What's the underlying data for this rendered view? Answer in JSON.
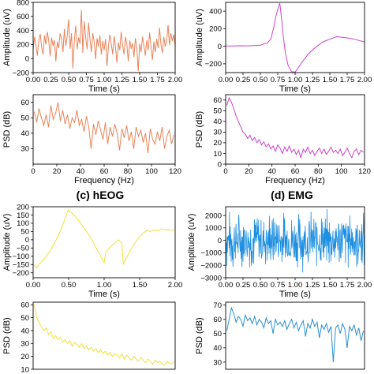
{
  "titles": {
    "top_left_partial": "",
    "top_right_partial": "",
    "c": "(c) hEOG",
    "d": "(d) EMG"
  },
  "chart_data": [
    {
      "id": "a-time",
      "type": "line",
      "color": "#E8845A",
      "xlabel": "Time (s)",
      "ylabel": "Amplitude (uV)",
      "xlim": [
        0,
        2
      ],
      "ylim": [
        -200,
        800
      ],
      "xticks": [
        0,
        0.25,
        0.5,
        0.75,
        1.0,
        1.25,
        1.5,
        1.75,
        2.0
      ],
      "xtick_labels": [
        "0.00",
        "0.25",
        "0.50",
        "0.75",
        "1.00",
        "1.25",
        "1.50",
        "1.75",
        "2.00"
      ],
      "yticks": [
        -200,
        0,
        200,
        400,
        600,
        800
      ],
      "ytick_labels": [
        "−200",
        "0",
        "200",
        "400",
        "600",
        "800"
      ],
      "x": [
        0,
        0.02,
        0.04,
        0.06,
        0.08,
        0.1,
        0.12,
        0.14,
        0.16,
        0.18,
        0.2,
        0.22,
        0.24,
        0.26,
        0.28,
        0.3,
        0.32,
        0.34,
        0.36,
        0.38,
        0.4,
        0.42,
        0.44,
        0.46,
        0.48,
        0.5,
        0.52,
        0.54,
        0.56,
        0.58,
        0.6,
        0.62,
        0.64,
        0.66,
        0.68,
        0.7,
        0.72,
        0.74,
        0.76,
        0.78,
        0.8,
        0.82,
        0.84,
        0.86,
        0.88,
        0.9,
        0.92,
        0.94,
        0.96,
        0.98,
        1.0,
        1.02,
        1.04,
        1.06,
        1.08,
        1.1,
        1.12,
        1.14,
        1.16,
        1.18,
        1.2,
        1.22,
        1.24,
        1.26,
        1.28,
        1.3,
        1.32,
        1.34,
        1.36,
        1.38,
        1.4,
        1.42,
        1.44,
        1.46,
        1.48,
        1.5,
        1.52,
        1.54,
        1.56,
        1.58,
        1.6,
        1.62,
        1.64,
        1.66,
        1.68,
        1.7,
        1.72,
        1.74,
        1.76,
        1.78,
        1.8,
        1.82,
        1.84,
        1.86,
        1.88,
        1.9,
        1.92,
        1.94,
        1.96,
        1.98,
        2.0
      ],
      "y": [
        120,
        310,
        180,
        40,
        260,
        350,
        160,
        60,
        330,
        200,
        380,
        250,
        30,
        300,
        180,
        260,
        -40,
        240,
        150,
        360,
        280,
        90,
        420,
        180,
        320,
        560,
        140,
        360,
        -140,
        250,
        470,
        130,
        300,
        210,
        690,
        80,
        530,
        300,
        130,
        510,
        280,
        90,
        360,
        240,
        -10,
        290,
        170,
        330,
        60,
        250,
        120,
        280,
        -110,
        170,
        340,
        210,
        60,
        320,
        160,
        -60,
        230,
        120,
        380,
        190,
        60,
        310,
        200,
        -40,
        260,
        140,
        220,
        20,
        290,
        150,
        -180,
        210,
        90,
        310,
        180,
        40,
        260,
        120,
        370,
        160,
        -20,
        240,
        90,
        280,
        150,
        440,
        200,
        80,
        310,
        170,
        250,
        480,
        190,
        360,
        250,
        340,
        180
      ]
    },
    {
      "id": "b-time",
      "type": "line",
      "color": "#CC44CC",
      "xlabel": "Time (s)",
      "ylabel": "Amplitude (uV)",
      "xlim": [
        0,
        2
      ],
      "ylim": [
        -300,
        500
      ],
      "xticks": [
        0,
        0.25,
        0.5,
        0.75,
        1.0,
        1.25,
        1.5,
        1.75,
        2.0
      ],
      "xtick_labels": [
        "0.00",
        "0.25",
        "0.50",
        "0.75",
        "1.00",
        "1.25",
        "1.50",
        "1.75",
        "2.00"
      ],
      "yticks": [
        -200,
        0,
        200,
        400
      ],
      "ytick_labels": [
        "−200",
        "0",
        "200",
        "400"
      ],
      "x": [
        0,
        0.1,
        0.2,
        0.3,
        0.4,
        0.5,
        0.55,
        0.6,
        0.65,
        0.7,
        0.72,
        0.75,
        0.78,
        0.8,
        0.83,
        0.86,
        0.9,
        0.95,
        1.0,
        1.05,
        1.1,
        1.2,
        1.3,
        1.4,
        1.5,
        1.6,
        1.7,
        1.8,
        1.9,
        2.0
      ],
      "y": [
        2,
        4,
        6,
        5,
        8,
        12,
        25,
        40,
        80,
        240,
        330,
        420,
        490,
        350,
        120,
        -80,
        -220,
        -290,
        -295,
        -240,
        -180,
        -80,
        -10,
        50,
        80,
        110,
        100,
        90,
        70,
        50
      ]
    },
    {
      "id": "a-psd",
      "type": "line",
      "color": "#E8845A",
      "xlabel": "Frequency (Hz)",
      "ylabel": "PSD (dB)",
      "xlim": [
        0,
        120
      ],
      "ylim": [
        20,
        65
      ],
      "xticks": [
        0,
        20,
        40,
        60,
        80,
        100,
        120
      ],
      "xtick_labels": [
        "0",
        "20",
        "40",
        "60",
        "80",
        "100",
        "120"
      ],
      "yticks": [
        30,
        40,
        50,
        60
      ],
      "ytick_labels": [
        "30",
        "40",
        "50",
        "60"
      ],
      "x": [
        1,
        3,
        5,
        7,
        9,
        11,
        13,
        15,
        17,
        19,
        21,
        23,
        25,
        27,
        29,
        31,
        33,
        35,
        37,
        39,
        41,
        43,
        45,
        47,
        49,
        51,
        53,
        55,
        57,
        59,
        61,
        63,
        65,
        67,
        69,
        71,
        73,
        75,
        77,
        79,
        81,
        83,
        85,
        87,
        89,
        91,
        93,
        95,
        97,
        99,
        101,
        103,
        105,
        107,
        109,
        111,
        113,
        115,
        117,
        119
      ],
      "y": [
        54,
        47,
        56,
        50,
        45,
        52,
        44,
        58,
        49,
        53,
        60,
        48,
        55,
        46,
        52,
        43,
        50,
        47,
        55,
        45,
        49,
        41,
        51,
        44,
        30,
        46,
        39,
        48,
        42,
        36,
        47,
        33,
        44,
        38,
        46,
        40,
        29,
        43,
        37,
        45,
        35,
        41,
        30,
        44,
        38,
        42,
        34,
        40,
        27,
        43,
        36,
        33,
        41,
        35,
        44,
        30,
        38,
        42,
        33,
        39
      ]
    },
    {
      "id": "b-psd",
      "type": "line",
      "color": "#CC44CC",
      "xlabel": "Frequency (Hz)",
      "ylabel": "PSD (dB)",
      "xlim": [
        0,
        120
      ],
      "ylim": [
        0,
        65
      ],
      "xticks": [
        0,
        20,
        40,
        60,
        80,
        100,
        120
      ],
      "xtick_labels": [
        "0",
        "20",
        "40",
        "60",
        "80",
        "100",
        "120"
      ],
      "yticks": [
        0,
        10,
        20,
        30,
        40,
        50,
        60
      ],
      "ytick_labels": [
        "0",
        "10",
        "20",
        "30",
        "40",
        "50",
        "60"
      ],
      "x": [
        1,
        3,
        5,
        7,
        9,
        11,
        13,
        15,
        17,
        19,
        21,
        23,
        25,
        27,
        29,
        31,
        33,
        35,
        37,
        39,
        41,
        43,
        45,
        47,
        49,
        51,
        53,
        55,
        57,
        59,
        61,
        63,
        65,
        67,
        69,
        71,
        73,
        75,
        77,
        79,
        81,
        83,
        85,
        87,
        89,
        91,
        93,
        95,
        97,
        99,
        101,
        103,
        105,
        107,
        109,
        111,
        113,
        115,
        117,
        119
      ],
      "y": [
        55,
        62,
        58,
        52,
        45,
        40,
        35,
        30,
        28,
        24,
        27,
        22,
        25,
        20,
        23,
        18,
        21,
        16,
        19,
        14,
        17,
        12,
        18,
        15,
        10,
        16,
        12,
        17,
        11,
        14,
        9,
        13,
        6,
        14,
        11,
        16,
        10,
        13,
        8,
        12,
        15,
        10,
        14,
        9,
        12,
        16,
        11,
        13,
        10,
        14,
        8,
        11,
        15,
        10,
        6,
        12,
        14,
        9,
        13,
        11
      ]
    },
    {
      "id": "c-time",
      "type": "line",
      "color": "#F2E03C",
      "title": "(c) hEOG",
      "xlabel": "Time (s)",
      "ylabel": "Amplitude (uV)",
      "xlim": [
        0,
        2
      ],
      "ylim": [
        -230,
        200
      ],
      "xticks": [
        0,
        0.5,
        1.0,
        1.5,
        2.0
      ],
      "xtick_labels": [
        "0.00",
        "0.50",
        "1.00",
        "1.50",
        "2.00"
      ],
      "yticks": [
        -200,
        -150,
        -100,
        -50,
        0,
        50,
        100,
        150,
        200
      ],
      "ytick_labels": [
        "−200",
        "−150",
        "−100",
        "−50",
        "0",
        "50",
        "100",
        "150",
        "200"
      ],
      "x": [
        0,
        0.05,
        0.1,
        0.15,
        0.2,
        0.25,
        0.3,
        0.35,
        0.4,
        0.45,
        0.48,
        0.5,
        0.55,
        0.6,
        0.65,
        0.7,
        0.75,
        0.8,
        0.85,
        0.9,
        0.95,
        1.0,
        1.02,
        1.05,
        1.1,
        1.15,
        1.2,
        1.25,
        1.27,
        1.3,
        1.35,
        1.4,
        1.45,
        1.5,
        1.55,
        1.6,
        1.65,
        1.7,
        1.75,
        1.8,
        1.85,
        1.9,
        1.95,
        2.0
      ],
      "y": [
        -150,
        -170,
        -140,
        -120,
        -90,
        -60,
        -20,
        20,
        70,
        130,
        165,
        180,
        160,
        140,
        110,
        80,
        50,
        20,
        -20,
        -60,
        -100,
        -140,
        -80,
        -60,
        -40,
        -20,
        0,
        -20,
        -150,
        -120,
        -80,
        -40,
        -10,
        20,
        40,
        55,
        50,
        60,
        55,
        65,
        60,
        62,
        58,
        60
      ]
    },
    {
      "id": "d-time",
      "type": "line",
      "color": "#1E8FE0",
      "title": "(d) EMG",
      "xlabel": "Time (s)",
      "ylabel": "Amplitude (uV)",
      "xlim": [
        0,
        2
      ],
      "ylim": [
        -3000,
        2700
      ],
      "xticks": [
        0,
        0.25,
        0.5,
        0.75,
        1.0,
        1.25,
        1.5,
        1.75,
        2.0
      ],
      "xtick_labels": [
        "0.00",
        "0.25",
        "0.50",
        "0.75",
        "1.00",
        "1.25",
        "1.50",
        "1.75",
        "2.00"
      ],
      "yticks": [
        -3000,
        -2000,
        -1000,
        0,
        1000,
        2000
      ],
      "ytick_labels": [
        "−3000",
        "−2000",
        "−1000",
        "0",
        "1000",
        "2000"
      ],
      "noise": {
        "n": 400,
        "amplitude": 2200,
        "seed": 7
      }
    },
    {
      "id": "c-psd",
      "type": "line",
      "color": "#F2E03C",
      "xlabel": "",
      "ylabel": "PSD (dB)",
      "xlim": [
        0,
        120
      ],
      "ylim": [
        10,
        62
      ],
      "xticks": [],
      "xtick_labels": [],
      "yticks": [
        10,
        20,
        30,
        40,
        50,
        60
      ],
      "ytick_labels": [
        "10",
        "20",
        "30",
        "40",
        "50",
        "60"
      ],
      "x": [
        1,
        3,
        5,
        7,
        9,
        11,
        13,
        15,
        17,
        19,
        21,
        23,
        25,
        27,
        29,
        31,
        33,
        35,
        37,
        39,
        41,
        43,
        45,
        47,
        49,
        51,
        53,
        55,
        57,
        59,
        61,
        63,
        65,
        67,
        69,
        71,
        73,
        75,
        77,
        79,
        81,
        83,
        85,
        87,
        89,
        91,
        93,
        95,
        97,
        99,
        101,
        103,
        105,
        107,
        109,
        111,
        113,
        115,
        117,
        119
      ],
      "y": [
        60,
        50,
        46,
        43,
        40,
        42,
        37,
        39,
        34,
        36,
        33,
        35,
        31,
        33,
        30,
        32,
        28,
        31,
        29,
        27,
        30,
        26,
        28,
        25,
        27,
        24,
        26,
        23,
        25,
        22,
        24,
        21,
        23,
        20,
        22,
        21,
        19,
        22,
        18,
        21,
        19,
        17,
        20,
        18,
        16,
        19,
        17,
        15,
        18,
        16,
        14,
        17,
        15,
        16,
        14,
        13,
        16,
        15,
        14,
        16
      ]
    },
    {
      "id": "d-psd",
      "type": "line",
      "color": "#2A8FD0",
      "xlabel": "",
      "ylabel": "PSD (dB)",
      "xlim": [
        0,
        120
      ],
      "ylim": [
        25,
        72
      ],
      "xticks": [],
      "xtick_labels": [],
      "yticks": [
        30,
        40,
        50,
        60,
        70
      ],
      "ytick_labels": [
        "30",
        "40",
        "50",
        "60",
        "70"
      ],
      "x": [
        1,
        3,
        5,
        7,
        9,
        11,
        13,
        15,
        17,
        19,
        21,
        23,
        25,
        27,
        29,
        31,
        33,
        35,
        37,
        39,
        41,
        43,
        45,
        47,
        49,
        51,
        53,
        55,
        57,
        59,
        61,
        63,
        65,
        67,
        69,
        71,
        73,
        75,
        77,
        79,
        81,
        83,
        85,
        87,
        89,
        91,
        93,
        95,
        97,
        99,
        101,
        103,
        105,
        107,
        109,
        111,
        113,
        115,
        117,
        119
      ],
      "y": [
        52,
        60,
        68,
        64,
        58,
        62,
        60,
        55,
        63,
        59,
        61,
        57,
        62,
        56,
        60,
        58,
        54,
        61,
        57,
        59,
        50,
        60,
        56,
        58,
        55,
        59,
        53,
        57,
        60,
        54,
        58,
        52,
        56,
        59,
        48,
        57,
        54,
        60,
        55,
        58,
        47,
        56,
        53,
        57,
        51,
        55,
        30,
        54,
        56,
        50,
        57,
        53,
        40,
        55,
        52,
        56,
        49,
        54,
        45,
        52
      ]
    }
  ]
}
